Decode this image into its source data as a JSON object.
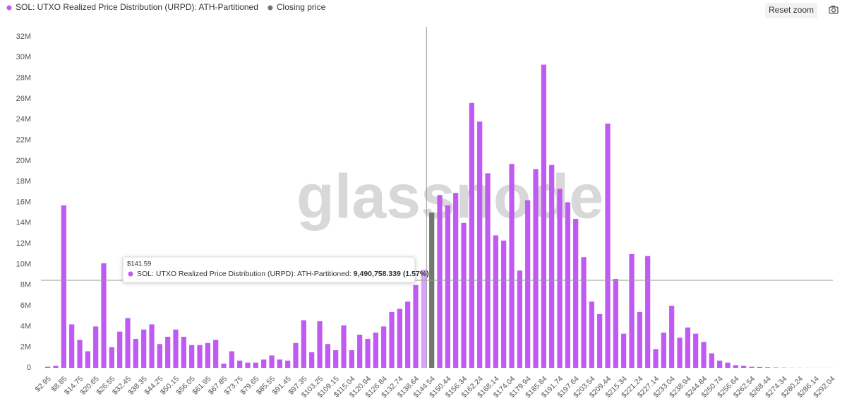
{
  "chart_data": {
    "type": "bar",
    "legend_position": "top-left",
    "grid": false,
    "watermark": "glassnode",
    "reset_button": "Reset zoom",
    "categories": [
      "$2.95",
      null,
      "$8.85",
      null,
      "$14.75",
      null,
      "$20.65",
      null,
      "$26.55",
      null,
      "$32.45",
      null,
      "$38.35",
      null,
      "$44.25",
      null,
      "$50.15",
      null,
      "$56.05",
      null,
      "$61.95",
      null,
      "$67.85",
      null,
      "$73.75",
      null,
      "$79.65",
      null,
      "$85.55",
      null,
      "$91.45",
      null,
      "$97.35",
      null,
      "$103.25",
      null,
      "$109.15",
      null,
      "$115.04",
      null,
      "$120.94",
      null,
      "$126.84",
      null,
      "$132.74",
      null,
      "$138.64",
      null,
      "$144.54",
      null,
      "$150.44",
      null,
      "$156.34",
      null,
      "$162.24",
      null,
      "$168.14",
      null,
      "$174.04",
      null,
      "$179.94",
      null,
      "$185.84",
      null,
      "$191.74",
      null,
      "$197.64",
      null,
      "$203.54",
      null,
      "$209.44",
      null,
      "$215.34",
      null,
      "$221.24",
      null,
      "$227.14",
      null,
      "$233.04",
      null,
      "$238.94",
      null,
      "$244.84",
      null,
      "$250.74",
      null,
      "$256.64",
      null,
      "$262.54",
      null,
      "$268.44",
      null,
      "$274.34",
      null,
      "$280.24",
      null,
      "$286.14",
      null,
      "$292.04"
    ],
    "series": [
      {
        "name": "SOL: UTXO Realized Price Distribution (URPD): ATH-Partitioned",
        "color": "#bf5af2",
        "hover_color": "#d9a3f7",
        "values": [
          100000,
          200000,
          15700000,
          4200000,
          2700000,
          1600000,
          4000000,
          10100000,
          2000000,
          3500000,
          4800000,
          2800000,
          3700000,
          4200000,
          2300000,
          3000000,
          3700000,
          3000000,
          2200000,
          2200000,
          2400000,
          2700000,
          400000,
          1600000,
          700000,
          500000,
          500000,
          800000,
          1200000,
          800000,
          700000,
          2400000,
          4600000,
          1500000,
          4500000,
          2300000,
          1700000,
          4100000,
          1700000,
          3200000,
          2800000,
          3400000,
          4000000,
          5400000,
          5700000,
          6400000,
          8000000,
          9490758.339,
          null,
          16700000,
          15700000,
          16900000,
          14000000,
          25600000,
          23800000,
          18800000,
          12800000,
          12300000,
          19700000,
          9400000,
          16200000,
          19200000,
          29300000,
          19600000,
          17300000,
          16000000,
          14400000,
          10700000,
          6400000,
          5200000,
          23600000,
          8600000,
          3300000,
          11000000,
          5400000,
          10800000,
          1800000,
          3400000,
          6000000,
          2900000,
          3900000,
          3300000,
          2500000,
          1400000,
          700000,
          500000,
          250000,
          200000,
          100000,
          80000,
          50000,
          30000,
          20000,
          10000,
          10000,
          5000,
          5000,
          5000,
          5000
        ]
      },
      {
        "name": "Closing price",
        "color": "#6e7a6b",
        "values": [
          null,
          null,
          null,
          null,
          null,
          null,
          null,
          null,
          null,
          null,
          null,
          null,
          null,
          null,
          null,
          null,
          null,
          null,
          null,
          null,
          null,
          null,
          null,
          null,
          null,
          null,
          null,
          null,
          null,
          null,
          null,
          null,
          null,
          null,
          null,
          null,
          null,
          null,
          null,
          null,
          null,
          null,
          null,
          null,
          null,
          null,
          null,
          null,
          15000000,
          null,
          null,
          null,
          null,
          null,
          null,
          null,
          null,
          null,
          null,
          null,
          null,
          null,
          null,
          null,
          null,
          null,
          null,
          null,
          null,
          null,
          null,
          null,
          null,
          null,
          null,
          null,
          null,
          null,
          null,
          null,
          null,
          null,
          null,
          null,
          null,
          null,
          null,
          null,
          null,
          null,
          null,
          null,
          null,
          null,
          null,
          null,
          null,
          null,
          null
        ]
      }
    ],
    "ylim": [
      0,
      32000000
    ],
    "yticks": [
      0,
      {
        "value": 2000000,
        "label": "2M"
      },
      {
        "value": 4000000,
        "label": "4M"
      },
      {
        "value": 6000000,
        "label": "6M"
      },
      {
        "value": 8000000,
        "label": "8M"
      },
      {
        "value": 10000000,
        "label": "10M"
      },
      {
        "value": 12000000,
        "label": "12M"
      },
      {
        "value": 14000000,
        "label": "14M"
      },
      {
        "value": 16000000,
        "label": "16M"
      },
      {
        "value": 18000000,
        "label": "18M"
      },
      {
        "value": 20000000,
        "label": "20M"
      },
      {
        "value": 22000000,
        "label": "22M"
      },
      {
        "value": 24000000,
        "label": "24M"
      },
      {
        "value": 26000000,
        "label": "26M"
      },
      {
        "value": 28000000,
        "label": "28M"
      },
      {
        "value": 30000000,
        "label": "30M"
      },
      {
        "value": 32000000,
        "label": "32M"
      }
    ],
    "tooltip": {
      "category": "$141.59",
      "series_label": "SOL: UTXO Realized Price Distribution (URPD): ATH-Partitioned:",
      "value": 9490758.339,
      "value_label": "9,490,758.339 (1.57%)"
    }
  }
}
